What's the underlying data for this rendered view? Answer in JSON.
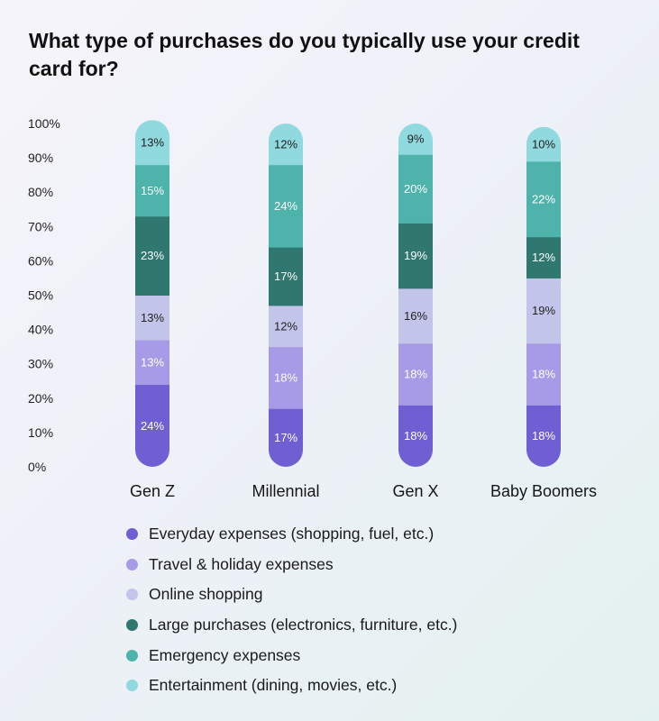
{
  "chart_data": {
    "type": "bar",
    "stacked": true,
    "title": "What type of purchases do you typically use your credit card for?",
    "xlabel": "",
    "ylabel": "",
    "ylim": [
      0,
      100
    ],
    "yticks": [
      "0%",
      "10%",
      "20%",
      "30%",
      "40%",
      "50%",
      "60%",
      "70%",
      "80%",
      "90%",
      "100%"
    ],
    "categories": [
      "Gen Z",
      "Millennial",
      "Gen X",
      "Baby Boomers"
    ],
    "series": [
      {
        "name": "Everyday expenses (shopping, fuel, etc.)",
        "color": "#6f5fd2",
        "text_color": "#ffffff",
        "values": [
          24,
          17,
          18,
          18
        ]
      },
      {
        "name": "Travel & holiday expenses",
        "color": "#a79ae6",
        "text_color": "#ffffff",
        "values": [
          13,
          18,
          18,
          18
        ]
      },
      {
        "name": "Online shopping",
        "color": "#c3c4ea",
        "text_color": "#222222",
        "values": [
          13,
          12,
          16,
          19
        ]
      },
      {
        "name": "Large purchases (electronics, furniture, etc.)",
        "color": "#2f776f",
        "text_color": "#ffffff",
        "values": [
          23,
          17,
          19,
          12
        ]
      },
      {
        "name": "Emergency expenses",
        "color": "#4db3ab",
        "text_color": "#ffffff",
        "values": [
          15,
          24,
          20,
          22
        ]
      },
      {
        "name": "Entertainment (dining, movies, etc.)",
        "color": "#8fd9df",
        "text_color": "#222222",
        "values": [
          13,
          12,
          9,
          10
        ]
      }
    ],
    "legend_position": "bottom-left",
    "grid": false
  }
}
